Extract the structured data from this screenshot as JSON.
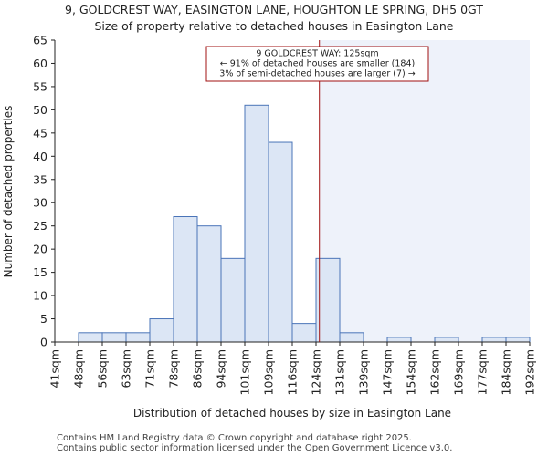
{
  "title": {
    "line1": "9, GOLDCREST WAY, EASINGTON LANE, HOUGHTON LE SPRING, DH5 0GT",
    "line2": "Size of property relative to detached houses in Easington Lane"
  },
  "footer": {
    "line1": "Contains HM Land Registry data © Crown copyright and database right 2025.",
    "line2": "Contains public sector information licensed under the Open Government Licence v3.0."
  },
  "chart_data": {
    "type": "bar",
    "title": "9, GOLDCREST WAY, EASINGTON LANE, HOUGHTON LE SPRING, DH5 0GT",
    "subtitle": "Size of property relative to detached houses in Easington Lane",
    "xlabel": "Distribution of detached houses by size in Easington Lane",
    "ylabel": "Number of detached properties",
    "bin_edges": [
      41,
      48,
      56,
      63,
      71,
      78,
      86,
      94,
      101,
      109,
      116,
      124,
      131,
      139,
      147,
      154,
      162,
      169,
      177,
      184,
      192
    ],
    "tick_labels": [
      "41sqm",
      "48sqm",
      "56sqm",
      "63sqm",
      "71sqm",
      "78sqm",
      "86sqm",
      "94sqm",
      "101sqm",
      "109sqm",
      "116sqm",
      "124sqm",
      "131sqm",
      "139sqm",
      "147sqm",
      "154sqm",
      "162sqm",
      "169sqm",
      "177sqm",
      "184sqm",
      "192sqm"
    ],
    "values": [
      0,
      2,
      2,
      2,
      5,
      27,
      25,
      18,
      51,
      43,
      4,
      18,
      2,
      0,
      1,
      0,
      1,
      0,
      1,
      1
    ],
    "ylim": [
      0,
      65
    ],
    "yticks": [
      0,
      5,
      10,
      15,
      20,
      25,
      30,
      35,
      40,
      45,
      50,
      55,
      60,
      65
    ],
    "grid": false,
    "marker": {
      "value_sqm": 125,
      "annotation_lines": [
        "9 GOLDCREST WAY: 125sqm",
        "← 91% of detached houses are smaller (184)",
        "3% of semi-detached houses are larger (7) →"
      ]
    },
    "colors": {
      "bar_fill": "#dce6f5",
      "bar_stroke": "#4a74b8",
      "marker_line": "#a01010",
      "annotation_border": "#a01010",
      "highlight_region": "#eef2fa",
      "axis": "#222222"
    }
  }
}
